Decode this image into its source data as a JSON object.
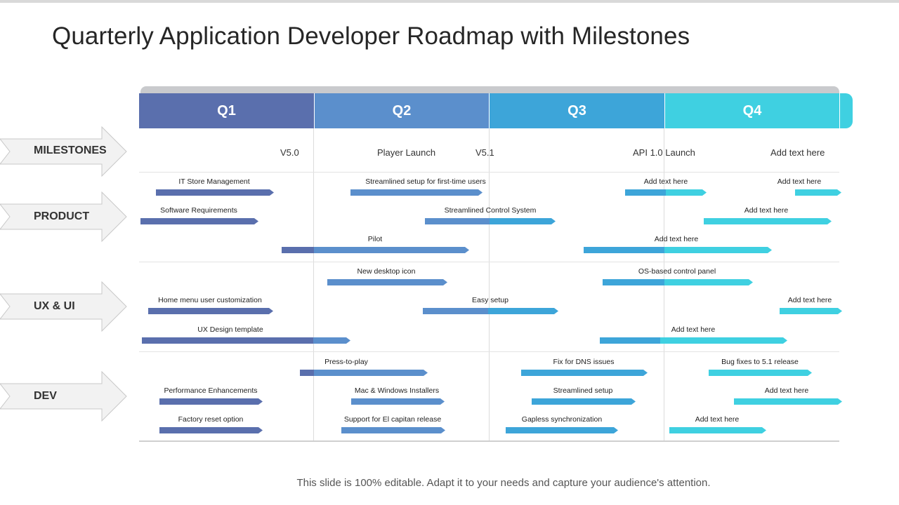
{
  "title": "Quarterly Application Developer Roadmap with Milestones",
  "footer": "This slide is 100% editable. Adapt it to your needs and capture your audience's attention.",
  "colors": {
    "q1": "#5a6fad",
    "q2": "#5b8fcc",
    "q3": "#3da5d9",
    "q4": "#3fd0e1"
  },
  "quarters": [
    "Q1",
    "Q2",
    "Q3",
    "Q4"
  ],
  "rows": {
    "milestones": "MILESTONES",
    "product": "PRODUCT",
    "ux": "UX & UI",
    "dev": "DEV"
  },
  "milestones": [
    "V5.0",
    "Player Launch",
    "V5.1",
    "API 1.0 Launch",
    "Add text here"
  ],
  "tasks": {
    "it_store": "IT Store Management",
    "streamlined_first": "Streamlined setup for first-time users",
    "p_add1": "Add text here",
    "p_add2": "Add text here",
    "software_req": "Software Requirements",
    "streamlined_control": "Streamlined Control System",
    "p_add3": "Add text here",
    "pilot": "Pilot",
    "p_add4": "Add text here",
    "new_desktop": "New desktop icon",
    "os_based": "OS-based control panel",
    "home_menu": "Home menu user customization",
    "easy_setup": "Easy setup",
    "u_add1": "Add text here",
    "ux_template": "UX Design template",
    "u_add2": "Add text here",
    "press_to_play": "Press-to-play",
    "fix_dns": "Fix for DNS issues",
    "bug_fixes": "Bug fixes to 5.1 release",
    "perf": "Performance Enhancements",
    "mac_win": "Mac & Windows Installers",
    "streamlined_setup": "Streamlined setup",
    "d_add1": "Add text here",
    "factory_reset": "Factory reset option",
    "el_capitan": "Support for El capitan release",
    "gapless": "Gapless synchronization",
    "d_add2": "Add text here"
  }
}
